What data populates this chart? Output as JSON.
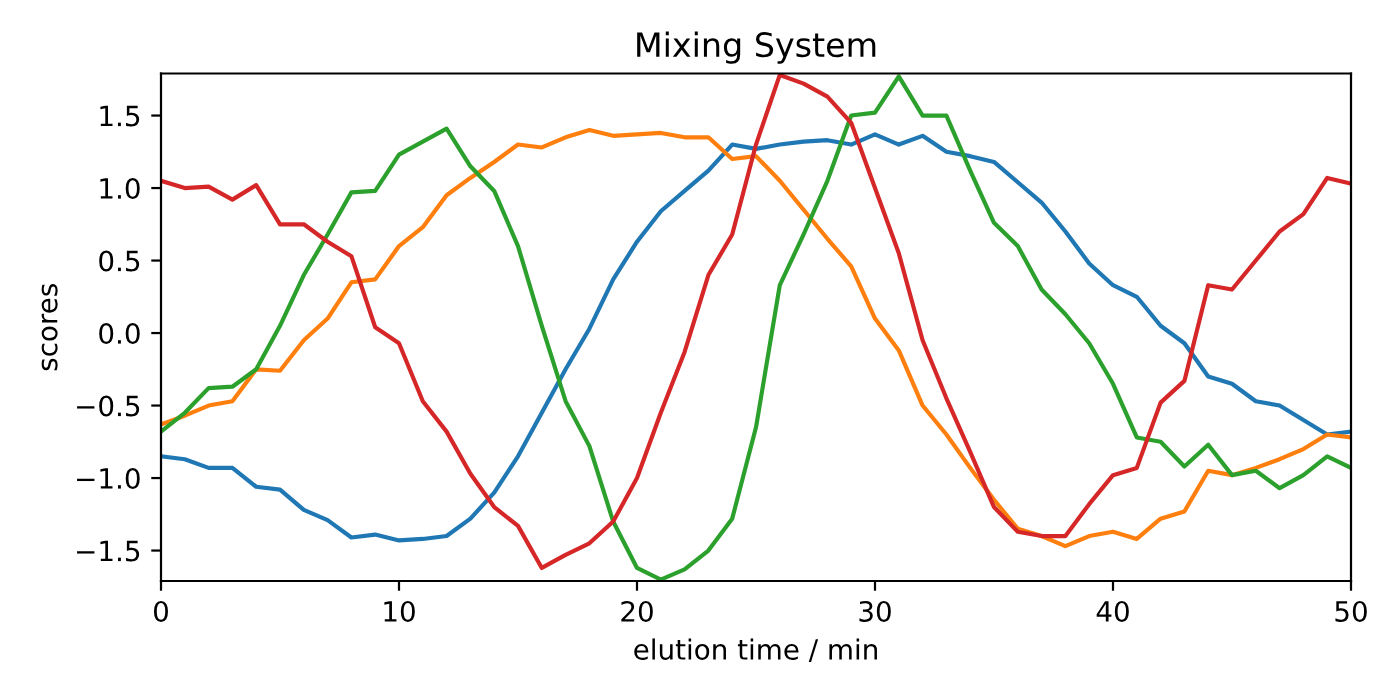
{
  "chart_data": {
    "type": "line",
    "title": "Mixing System",
    "xlabel": "elution time / min",
    "ylabel": "scores",
    "x": [
      0,
      1,
      2,
      3,
      4,
      5,
      6,
      7,
      8,
      9,
      10,
      11,
      12,
      13,
      14,
      15,
      16,
      17,
      18,
      19,
      20,
      21,
      22,
      23,
      24,
      25,
      26,
      27,
      28,
      29,
      30,
      31,
      32,
      33,
      34,
      35,
      36,
      37,
      38,
      39,
      40,
      41,
      42,
      43,
      44,
      45,
      46,
      47,
      48,
      49,
      50
    ],
    "series": [
      {
        "color": "#1f77b4",
        "values": [
          -0.85,
          -0.87,
          -0.93,
          -0.93,
          -1.06,
          -1.08,
          -1.22,
          -1.29,
          -1.41,
          -1.39,
          -1.43,
          -1.42,
          -1.4,
          -1.28,
          -1.1,
          -0.85,
          -0.55,
          -0.25,
          0.03,
          0.37,
          0.63,
          0.84,
          0.98,
          1.12,
          1.3,
          1.27,
          1.3,
          1.32,
          1.33,
          1.3,
          1.37,
          1.3,
          1.36,
          1.25,
          1.22,
          1.18,
          1.04,
          0.9,
          0.7,
          0.48,
          0.33,
          0.25,
          0.05,
          -0.07,
          -0.3,
          -0.35,
          -0.47,
          -0.5,
          -0.6,
          -0.7,
          -0.68
        ]
      },
      {
        "color": "#ff7f0e",
        "values": [
          -0.63,
          -0.57,
          -0.5,
          -0.47,
          -0.25,
          -0.26,
          -0.05,
          0.1,
          0.35,
          0.37,
          0.6,
          0.73,
          0.95,
          1.07,
          1.18,
          1.3,
          1.28,
          1.35,
          1.4,
          1.36,
          1.37,
          1.38,
          1.35,
          1.35,
          1.2,
          1.22,
          1.05,
          0.85,
          0.65,
          0.46,
          0.1,
          -0.12,
          -0.5,
          -0.7,
          -0.93,
          -1.15,
          -1.35,
          -1.4,
          -1.47,
          -1.4,
          -1.37,
          -1.42,
          -1.28,
          -1.23,
          -0.95,
          -0.98,
          -0.93,
          -0.87,
          -0.8,
          -0.7,
          -0.72
        ]
      },
      {
        "color": "#2ca02c",
        "values": [
          -0.68,
          -0.55,
          -0.38,
          -0.37,
          -0.25,
          0.05,
          0.4,
          0.68,
          0.97,
          0.98,
          1.23,
          1.32,
          1.41,
          1.15,
          0.98,
          0.6,
          0.05,
          -0.47,
          -0.78,
          -1.3,
          -1.62,
          -1.7,
          -1.63,
          -1.5,
          -1.28,
          -0.65,
          0.33,
          0.68,
          1.05,
          1.5,
          1.52,
          1.77,
          1.5,
          1.5,
          1.12,
          0.76,
          0.6,
          0.3,
          0.13,
          -0.07,
          -0.35,
          -0.72,
          -0.75,
          -0.92,
          -0.77,
          -0.98,
          -0.95,
          -1.07,
          -0.98,
          -0.85,
          -0.93
        ]
      },
      {
        "color": "#d62728",
        "values": [
          1.05,
          1.0,
          1.01,
          0.92,
          1.02,
          0.75,
          0.75,
          0.63,
          0.53,
          0.04,
          -0.07,
          -0.47,
          -0.68,
          -0.97,
          -1.2,
          -1.33,
          -1.62,
          -1.53,
          -1.45,
          -1.3,
          -1.0,
          -0.55,
          -0.13,
          0.4,
          0.68,
          1.3,
          1.78,
          1.72,
          1.63,
          1.45,
          1.0,
          0.55,
          -0.05,
          -0.45,
          -0.82,
          -1.2,
          -1.37,
          -1.4,
          -1.4,
          -1.18,
          -0.98,
          -0.93,
          -0.48,
          -0.33,
          0.33,
          0.3,
          0.5,
          0.7,
          0.82,
          1.07,
          1.03
        ]
      }
    ],
    "xlim": [
      0,
      50
    ],
    "xticks": [
      0,
      10,
      20,
      30,
      40,
      50
    ],
    "ylim": [
      -1.71,
      1.79
    ],
    "yticks": [
      {
        "value": -1.5,
        "label": "−1.5"
      },
      {
        "value": -1.0,
        "label": "−1.0"
      },
      {
        "value": -0.5,
        "label": "−0.5"
      },
      {
        "value": 0.0,
        "label": "0.0"
      },
      0.5,
      {
        "value": 1.0,
        "label": "1.0"
      },
      1.5
    ],
    "grid": false,
    "legend": false
  }
}
